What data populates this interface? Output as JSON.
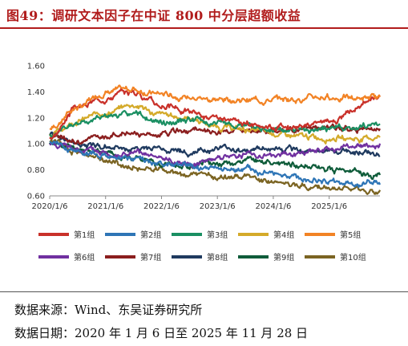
{
  "figure": {
    "title": "图49：调研文本因子在中证 800 中分层超额收益",
    "source": "数据来源：Wind、东吴证券研究所",
    "date_note": "数据日期：2020 年 1 月 6 日至 2025 年 11 月 28 日"
  },
  "chart_data": {
    "type": "line",
    "title": "",
    "xlabel": "",
    "ylabel": "",
    "ylim": [
      0.6,
      1.6
    ],
    "yticks": [
      "0.60",
      "0.80",
      "1.00",
      "1.20",
      "1.40",
      "1.60"
    ],
    "ytick_values": [
      0.6,
      0.8,
      1.0,
      1.2,
      1.4,
      1.6
    ],
    "xticks": [
      "2020/1/6",
      "2021/1/6",
      "2022/1/6",
      "2023/1/6",
      "2024/1/6",
      "2025/1/6"
    ],
    "x_start": "2020/1/6",
    "x_end": "2025/11/28",
    "grid": false,
    "legend_placement": "bottom",
    "x": [
      "2020/1",
      "2020/7",
      "2021/1",
      "2021/7",
      "2022/1",
      "2022/7",
      "2023/1",
      "2023/7",
      "2024/1",
      "2024/7",
      "2025/1",
      "2025/7",
      "2025/11"
    ],
    "series": [
      {
        "name": "第1组",
        "color": "#c9312a",
        "values": [
          1.05,
          1.28,
          1.36,
          1.4,
          1.3,
          1.25,
          1.18,
          1.15,
          1.14,
          1.13,
          1.18,
          1.27,
          1.38
        ]
      },
      {
        "name": "第2组",
        "color": "#2e75b6",
        "values": [
          1.02,
          0.95,
          0.91,
          0.88,
          0.84,
          0.83,
          0.8,
          0.79,
          0.77,
          0.74,
          0.71,
          0.7,
          0.69
        ]
      },
      {
        "name": "第3组",
        "color": "#1a8f62",
        "values": [
          1.05,
          1.15,
          1.22,
          1.22,
          1.16,
          1.18,
          1.16,
          1.14,
          1.12,
          1.1,
          1.12,
          1.14,
          1.15
        ]
      },
      {
        "name": "第4组",
        "color": "#d4aa2a",
        "values": [
          1.07,
          1.18,
          1.24,
          1.3,
          1.22,
          1.2,
          1.13,
          1.11,
          1.08,
          1.05,
          1.05,
          1.04,
          1.05
        ]
      },
      {
        "name": "第5组",
        "color": "#f28325",
        "values": [
          1.12,
          1.28,
          1.4,
          1.42,
          1.38,
          1.36,
          1.34,
          1.34,
          1.34,
          1.35,
          1.36,
          1.35,
          1.35
        ]
      },
      {
        "name": "第6组",
        "color": "#7030a0",
        "values": [
          1.0,
          0.96,
          0.93,
          0.92,
          0.88,
          0.85,
          0.9,
          0.92,
          0.91,
          0.93,
          0.95,
          0.98,
          0.99
        ]
      },
      {
        "name": "第7组",
        "color": "#8b1e1e",
        "values": [
          1.05,
          1.02,
          1.06,
          1.08,
          1.07,
          1.1,
          1.08,
          1.1,
          1.1,
          1.12,
          1.12,
          1.11,
          1.12
        ]
      },
      {
        "name": "第8组",
        "color": "#1f3a5f",
        "values": [
          1.08,
          1.0,
          0.98,
          0.96,
          0.96,
          0.94,
          0.96,
          0.95,
          0.95,
          0.94,
          0.95,
          0.94,
          0.93
        ]
      },
      {
        "name": "第9组",
        "color": "#0f5c3a",
        "values": [
          1.0,
          0.97,
          0.93,
          0.9,
          0.85,
          0.83,
          0.85,
          0.87,
          0.86,
          0.84,
          0.8,
          0.78,
          0.76
        ]
      },
      {
        "name": "第10组",
        "color": "#7b6422",
        "values": [
          1.02,
          0.94,
          0.88,
          0.82,
          0.8,
          0.76,
          0.75,
          0.74,
          0.71,
          0.68,
          0.65,
          0.63,
          0.62
        ]
      }
    ]
  }
}
